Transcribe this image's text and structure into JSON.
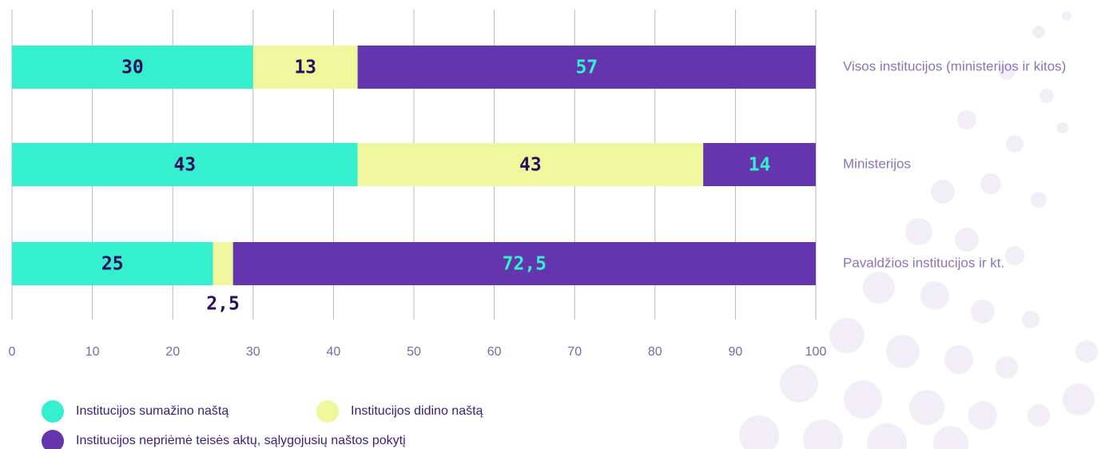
{
  "chart_data": {
    "type": "stacked_bar_horizontal",
    "categories": [
      "Visos institucijos (ministerijos ir kitos)",
      "Ministerijos",
      "Pavaldžios institucijos ir kt."
    ],
    "series": [
      {
        "name": "Institucijos sumažino naštą",
        "color": "#35f0cf",
        "values": [
          30,
          43,
          25
        ],
        "value_labels": [
          "30",
          "43",
          "25"
        ]
      },
      {
        "name": "Institucijos didino naštą",
        "color": "#eff79c",
        "values": [
          13,
          43,
          2.5
        ],
        "value_labels": [
          "13",
          "43",
          "2,5"
        ]
      },
      {
        "name": "Institucijos nepriėmė teisės aktų, sąlygojusių naštos pokytį",
        "color": "#6535ad",
        "values": [
          57,
          14,
          72.5
        ],
        "value_labels": [
          "57",
          "14",
          "72,5"
        ]
      }
    ],
    "xlim": [
      0,
      100
    ],
    "xticks": [
      0,
      10,
      20,
      30,
      40,
      50,
      60,
      70,
      80,
      90,
      100
    ],
    "grid": true
  }
}
